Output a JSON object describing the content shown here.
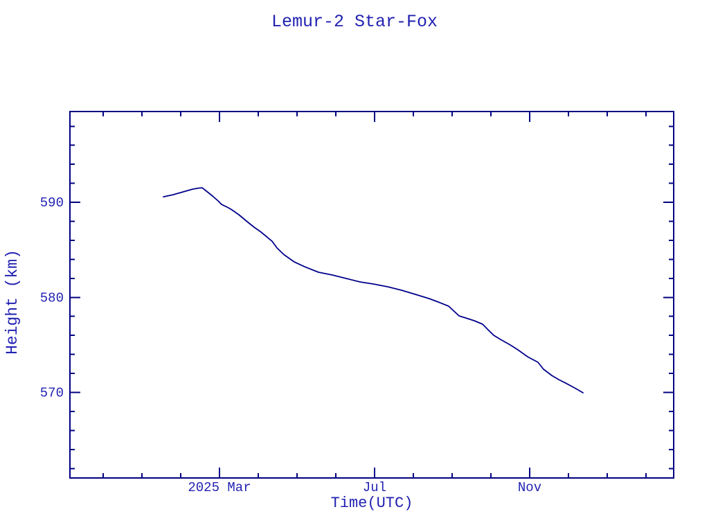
{
  "window": {
    "background": "#ffffff"
  },
  "colors": {
    "frame": "#000082",
    "line": "#00008b",
    "text": "#2222b2",
    "background": "#ffffff"
  },
  "chart_data": {
    "type": "line",
    "title": "Lemur-2 Star-Fox",
    "xlabel": "Time(UTC)",
    "ylabel": "Height (km)",
    "x_unit": "months since 2025-03-01 (axis spans ~Nov 2024 to ~Feb 2026, minor tick each month)",
    "xlim": [
      -3.857,
      11.714
    ],
    "ylim": [
      561.0,
      599.55
    ],
    "x_major_ticks": [
      {
        "pos": 0,
        "label": "2025 Mar"
      },
      {
        "pos": 4,
        "label": "Jul"
      },
      {
        "pos": 8,
        "label": "Nov"
      }
    ],
    "x_minor_step": 1,
    "y_major_ticks": [
      {
        "pos": 570,
        "label": "570"
      },
      {
        "pos": 580,
        "label": "580"
      },
      {
        "pos": 590,
        "label": "590"
      }
    ],
    "y_minor_step": 2,
    "grid": false,
    "legend": null,
    "series": [
      {
        "name": "orbit-height",
        "color": "#00008b",
        "points": [
          [
            -1.446,
            590.58
          ],
          [
            -1.196,
            590.8
          ],
          [
            -0.946,
            591.09
          ],
          [
            -0.696,
            591.38
          ],
          [
            -0.536,
            591.5
          ],
          [
            -0.446,
            591.53
          ],
          [
            -0.357,
            591.24
          ],
          [
            -0.179,
            590.66
          ],
          [
            -0.036,
            590.15
          ],
          [
            0.054,
            589.78
          ],
          [
            0.232,
            589.42
          ],
          [
            0.321,
            589.2
          ],
          [
            0.5,
            588.69
          ],
          [
            0.714,
            587.96
          ],
          [
            0.893,
            587.38
          ],
          [
            1.071,
            586.87
          ],
          [
            1.357,
            585.9
          ],
          [
            1.482,
            585.2
          ],
          [
            1.661,
            584.5
          ],
          [
            1.929,
            583.73
          ],
          [
            2.196,
            583.22
          ],
          [
            2.554,
            582.64
          ],
          [
            2.911,
            582.35
          ],
          [
            3.268,
            581.99
          ],
          [
            3.625,
            581.62
          ],
          [
            3.982,
            581.4
          ],
          [
            4.339,
            581.11
          ],
          [
            4.696,
            580.75
          ],
          [
            5.054,
            580.31
          ],
          [
            5.411,
            579.87
          ],
          [
            5.643,
            579.51
          ],
          [
            5.911,
            579.07
          ],
          [
            6.179,
            578.05
          ],
          [
            6.357,
            577.83
          ],
          [
            6.571,
            577.54
          ],
          [
            6.786,
            577.18
          ],
          [
            6.929,
            576.59
          ],
          [
            7.071,
            576.01
          ],
          [
            7.25,
            575.57
          ],
          [
            7.5,
            574.99
          ],
          [
            7.696,
            574.48
          ],
          [
            7.946,
            573.75
          ],
          [
            8.214,
            573.17
          ],
          [
            8.357,
            572.44
          ],
          [
            8.571,
            571.78
          ],
          [
            8.75,
            571.35
          ],
          [
            8.929,
            570.98
          ],
          [
            9.161,
            570.47
          ],
          [
            9.375,
            569.96
          ]
        ]
      }
    ]
  }
}
